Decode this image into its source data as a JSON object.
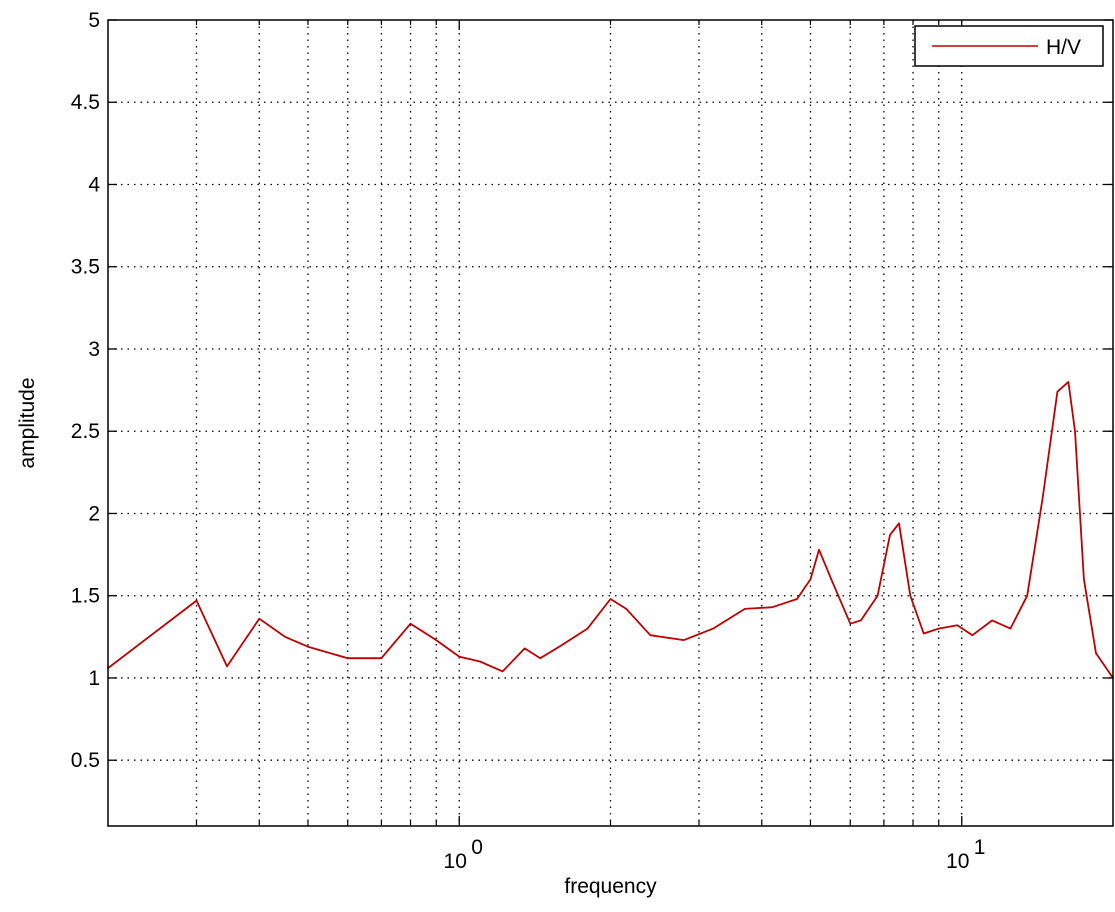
{
  "chart_data": {
    "type": "line",
    "title": "",
    "xlabel": "frequency",
    "ylabel": "amplitude",
    "xscale": "log",
    "xlim": [
      0.2,
      20
    ],
    "ylim": [
      0.1,
      5
    ],
    "grid": true,
    "y_ticks": [
      {
        "value": 0.5,
        "label": "0.5"
      },
      {
        "value": 1,
        "label": "1"
      },
      {
        "value": 1.5,
        "label": "1.5"
      },
      {
        "value": 2,
        "label": "2"
      },
      {
        "value": 2.5,
        "label": "2.5"
      },
      {
        "value": 3,
        "label": "3"
      },
      {
        "value": 3.5,
        "label": "3.5"
      },
      {
        "value": 4,
        "label": "4"
      },
      {
        "value": 4.5,
        "label": "4.5"
      },
      {
        "value": 5,
        "label": "5"
      }
    ],
    "x_major_ticks": [
      {
        "value": 1,
        "base": "10",
        "exponent": "0"
      },
      {
        "value": 10,
        "base": "10",
        "exponent": "1"
      }
    ],
    "x_minor_ticks": [
      0.3,
      0.4,
      0.5,
      0.6,
      0.7,
      0.8,
      0.9,
      2,
      3,
      4,
      5,
      6,
      7,
      8,
      9
    ],
    "legend": {
      "position": "top-right"
    },
    "series": [
      {
        "name": "H/V",
        "color": "#c00000",
        "x": [
          0.2,
          0.3,
          0.345,
          0.4,
          0.45,
          0.5,
          0.6,
          0.7,
          0.8,
          0.9,
          1.0,
          1.1,
          1.22,
          1.35,
          1.45,
          1.6,
          1.8,
          2.0,
          2.15,
          2.4,
          2.8,
          3.2,
          3.7,
          4.2,
          4.7,
          5.0,
          5.2,
          5.5,
          6.0,
          6.3,
          6.8,
          7.2,
          7.5,
          7.9,
          8.4,
          9.0,
          9.8,
          10.5,
          11.5,
          12.5,
          13.5,
          14.5,
          15.5,
          16.3,
          16.8,
          17.5,
          18.5,
          20.0
        ],
        "y": [
          1.06,
          1.47,
          1.07,
          1.36,
          1.25,
          1.19,
          1.12,
          1.12,
          1.33,
          1.23,
          1.13,
          1.1,
          1.04,
          1.18,
          1.12,
          1.2,
          1.3,
          1.48,
          1.42,
          1.26,
          1.23,
          1.3,
          1.42,
          1.43,
          1.48,
          1.6,
          1.78,
          1.6,
          1.33,
          1.35,
          1.5,
          1.87,
          1.94,
          1.5,
          1.27,
          1.3,
          1.32,
          1.26,
          1.35,
          1.3,
          1.5,
          2.1,
          2.74,
          2.8,
          2.5,
          1.6,
          1.15,
          1.0
        ]
      }
    ]
  }
}
